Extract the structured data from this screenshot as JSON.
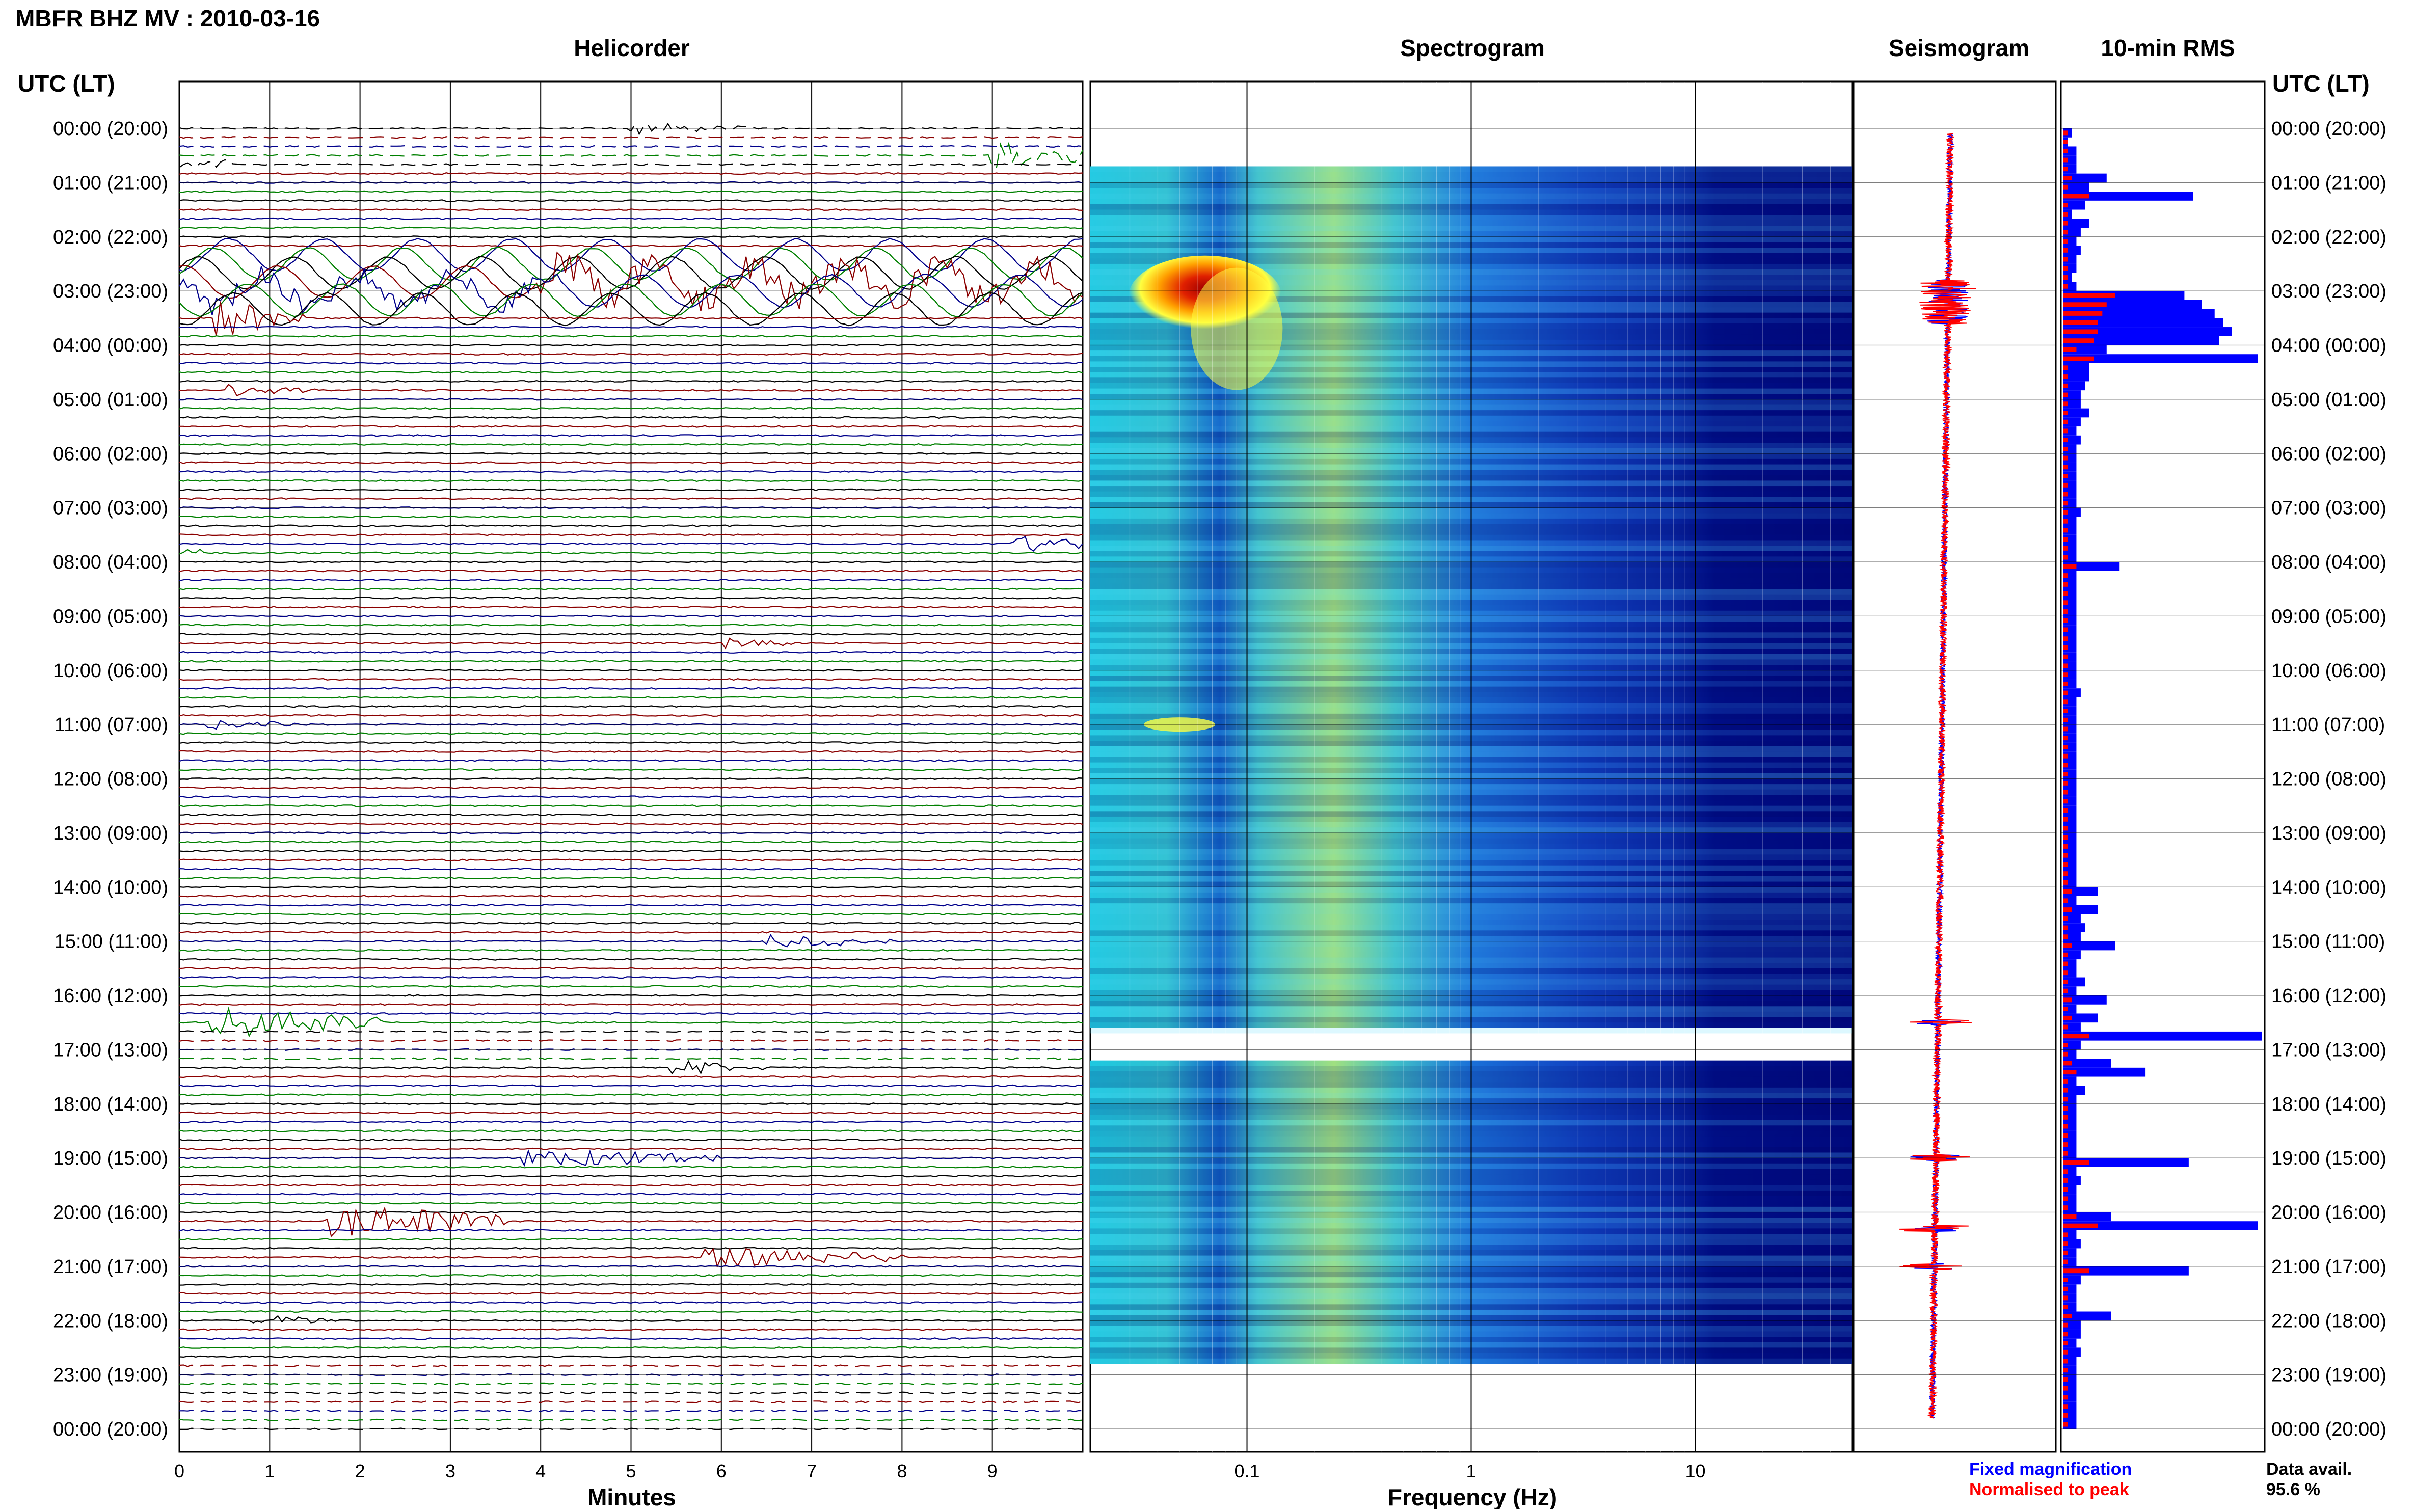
{
  "title": "MBFR BHZ MV : 2010-03-16",
  "panels": {
    "helicorder": "Helicorder",
    "spectrogram": "Spectrogram",
    "seismogram": "Seismogram",
    "rms": "10-min RMS"
  },
  "axis": {
    "left_header": "UTC (LT)",
    "right_header": "UTC (LT)",
    "helicorder_xlabel": "Minutes",
    "spectrogram_xlabel": "Frequency (Hz)"
  },
  "legend": {
    "fixed": "Fixed magnification",
    "normalised": "Normalised to peak",
    "data_avail_label": "Data avail.",
    "data_avail_value": "95.6 %"
  },
  "colors": {
    "trace_black": "#000000",
    "trace_red": "#8b0000",
    "trace_blue": "#00008b",
    "trace_green": "#008000",
    "fixed": "#0000ff",
    "normalised": "#ff0000"
  },
  "chart_data": [
    {
      "type": "line",
      "name": "helicorder",
      "xlabel": "Minutes",
      "x_ticks": [
        0,
        1,
        2,
        3,
        4,
        5,
        6,
        7,
        8,
        9
      ],
      "xlim": [
        0,
        10
      ],
      "rows_per_hour": 6,
      "hour_labels": [
        "00:00 (20:00)",
        "01:00 (21:00)",
        "02:00 (22:00)",
        "03:00 (23:00)",
        "04:00 (00:00)",
        "05:00 (01:00)",
        "06:00 (02:00)",
        "07:00 (03:00)",
        "08:00 (04:00)",
        "09:00 (05:00)",
        "10:00 (06:00)",
        "11:00 (07:00)",
        "12:00 (08:00)",
        "13:00 (09:00)",
        "14:00 (10:00)",
        "15:00 (11:00)",
        "16:00 (12:00)",
        "17:00 (13:00)",
        "18:00 (14:00)",
        "19:00 (15:00)",
        "20:00 (16:00)",
        "21:00 (17:00)",
        "22:00 (18:00)",
        "23:00 (19:00)",
        "00:00 (20:00)"
      ],
      "events": [
        {
          "hour": 0.0,
          "minute": 5.0,
          "dur": 1.2,
          "amp": 0.8
        },
        {
          "hour": 0.5,
          "minute": 9.0,
          "dur": 1.4,
          "amp": 1.8
        },
        {
          "hour": 2.9,
          "minute": 0.0,
          "dur": 10,
          "amp": 2.6
        },
        {
          "hour": 3.5,
          "minute": 0.4,
          "dur": 0.8,
          "amp": 3.0
        },
        {
          "hour": 4.8,
          "minute": 2.5,
          "dur": 0.8,
          "amp": 0.9
        },
        {
          "hour": 7.8,
          "minute": 1.2,
          "dur": 0.9,
          "amp": 1.2
        },
        {
          "hour": 9.5,
          "minute": 6.0,
          "dur": 0.6,
          "amp": 0.8
        },
        {
          "hour": 11.0,
          "minute": 0.3,
          "dur": 0.8,
          "amp": 0.9
        },
        {
          "hour": 15.0,
          "minute": 6.5,
          "dur": 1.2,
          "amp": 1.0
        },
        {
          "hour": 16.5,
          "minute": 0.3,
          "dur": 1.8,
          "amp": 2.4
        },
        {
          "hour": 17.4,
          "minute": 1.4,
          "dur": 0.9,
          "amp": 1.4
        },
        {
          "hour": 19.0,
          "minute": 3.8,
          "dur": 2.0,
          "amp": 1.4
        },
        {
          "hour": 20.1,
          "minute": 5.6,
          "dur": 1.8,
          "amp": 2.6
        },
        {
          "hour": 20.8,
          "minute": 7.8,
          "dur": 2.0,
          "amp": 1.4
        },
        {
          "hour": 22.0,
          "minute": 0.8,
          "dur": 0.8,
          "amp": 0.8
        }
      ]
    },
    {
      "type": "heatmap",
      "name": "spectrogram",
      "xlabel": "Frequency (Hz)",
      "x_scale": "log",
      "xlim": [
        0.02,
        50
      ],
      "x_ticks": [
        0.1,
        1,
        10
      ],
      "gaps_hours": [
        [
          0,
          0.7
        ],
        [
          16.6,
          17.2
        ],
        [
          22.8,
          24
        ]
      ]
    },
    {
      "type": "line",
      "name": "seismogram",
      "series": [
        {
          "name": "Fixed magnification"
        },
        {
          "name": "Normalised to peak"
        }
      ]
    },
    {
      "type": "bar",
      "name": "10-min RMS",
      "series": [
        {
          "name": "Fixed magnification",
          "values": [
            0.2,
            0.1,
            0.3,
            0.3,
            0.3,
            1.0,
            0.6,
            3.0,
            0.5,
            0.2,
            0.6,
            0.4,
            0.3,
            0.4,
            0.3,
            0.3,
            0.2,
            0.3,
            2.8,
            3.2,
            3.5,
            3.7,
            3.9,
            3.6,
            1.0,
            4.5,
            0.6,
            0.6,
            0.5,
            0.4,
            0.4,
            0.6,
            0.4,
            0.3,
            0.4,
            0.3,
            0.3,
            0.3,
            0.3,
            0.3,
            0.3,
            0.3,
            0.4,
            0.3,
            0.3,
            0.3,
            0.3,
            0.3,
            1.3,
            0.3,
            0.3,
            0.3,
            0.3,
            0.3,
            0.3,
            0.3,
            0.3,
            0.3,
            0.3,
            0.3,
            0.3,
            0.3,
            0.4,
            0.3,
            0.3,
            0.3,
            0.3,
            0.3,
            0.3,
            0.3,
            0.3,
            0.3,
            0.3,
            0.3,
            0.3,
            0.3,
            0.3,
            0.3,
            0.3,
            0.3,
            0.3,
            0.3,
            0.3,
            0.3,
            0.8,
            0.3,
            0.8,
            0.4,
            0.5,
            0.4,
            1.2,
            0.4,
            0.3,
            0.3,
            0.5,
            0.3,
            1.0,
            0.3,
            0.8,
            0.4,
            4.6,
            0.4,
            0.3,
            1.1,
            1.9,
            0.3,
            0.5,
            0.3,
            0.3,
            0.3,
            0.3,
            0.3,
            0.3,
            0.3,
            2.9,
            0.3,
            0.4,
            0.3,
            0.3,
            0.3,
            1.1,
            4.5,
            0.3,
            0.4,
            0.3,
            0.3,
            2.9,
            0.4,
            0.3,
            0.3,
            0.3,
            1.1,
            0.4,
            0.4,
            0.3,
            0.4,
            0.3,
            0.3,
            0.3,
            0.3,
            0.3,
            0.3,
            0.3,
            0.3
          ]
        },
        {
          "name": "Normalised to peak",
          "values": [
            0.1,
            0.1,
            0.1,
            0.1,
            0.1,
            0.2,
            0.1,
            0.6,
            0.1,
            0.1,
            0.1,
            0.1,
            0.1,
            0.1,
            0.1,
            0.1,
            0.1,
            0.1,
            1.2,
            1.0,
            0.9,
            0.8,
            0.8,
            0.7,
            0.3,
            0.7,
            0.1,
            0.1,
            0.1,
            0.1,
            0.1,
            0.1,
            0.1,
            0.1,
            0.1,
            0.1,
            0.1,
            0.1,
            0.1,
            0.1,
            0.1,
            0.1,
            0.1,
            0.1,
            0.1,
            0.1,
            0.1,
            0.1,
            0.3,
            0.1,
            0.1,
            0.1,
            0.1,
            0.1,
            0.1,
            0.1,
            0.1,
            0.1,
            0.1,
            0.1,
            0.1,
            0.1,
            0.1,
            0.1,
            0.1,
            0.1,
            0.1,
            0.1,
            0.1,
            0.1,
            0.1,
            0.1,
            0.1,
            0.1,
            0.1,
            0.1,
            0.1,
            0.1,
            0.1,
            0.1,
            0.1,
            0.1,
            0.1,
            0.1,
            0.2,
            0.1,
            0.2,
            0.1,
            0.1,
            0.1,
            0.2,
            0.1,
            0.1,
            0.1,
            0.1,
            0.1,
            0.2,
            0.1,
            0.2,
            0.1,
            0.6,
            0.1,
            0.1,
            0.2,
            0.3,
            0.1,
            0.1,
            0.1,
            0.1,
            0.1,
            0.1,
            0.1,
            0.1,
            0.1,
            0.6,
            0.1,
            0.1,
            0.1,
            0.1,
            0.1,
            0.3,
            0.8,
            0.1,
            0.1,
            0.1,
            0.1,
            0.6,
            0.1,
            0.1,
            0.1,
            0.1,
            0.2,
            0.1,
            0.1,
            0.1,
            0.1,
            0.1,
            0.1,
            0.1,
            0.1,
            0.1,
            0.1,
            0.1,
            0.1
          ]
        }
      ]
    }
  ]
}
